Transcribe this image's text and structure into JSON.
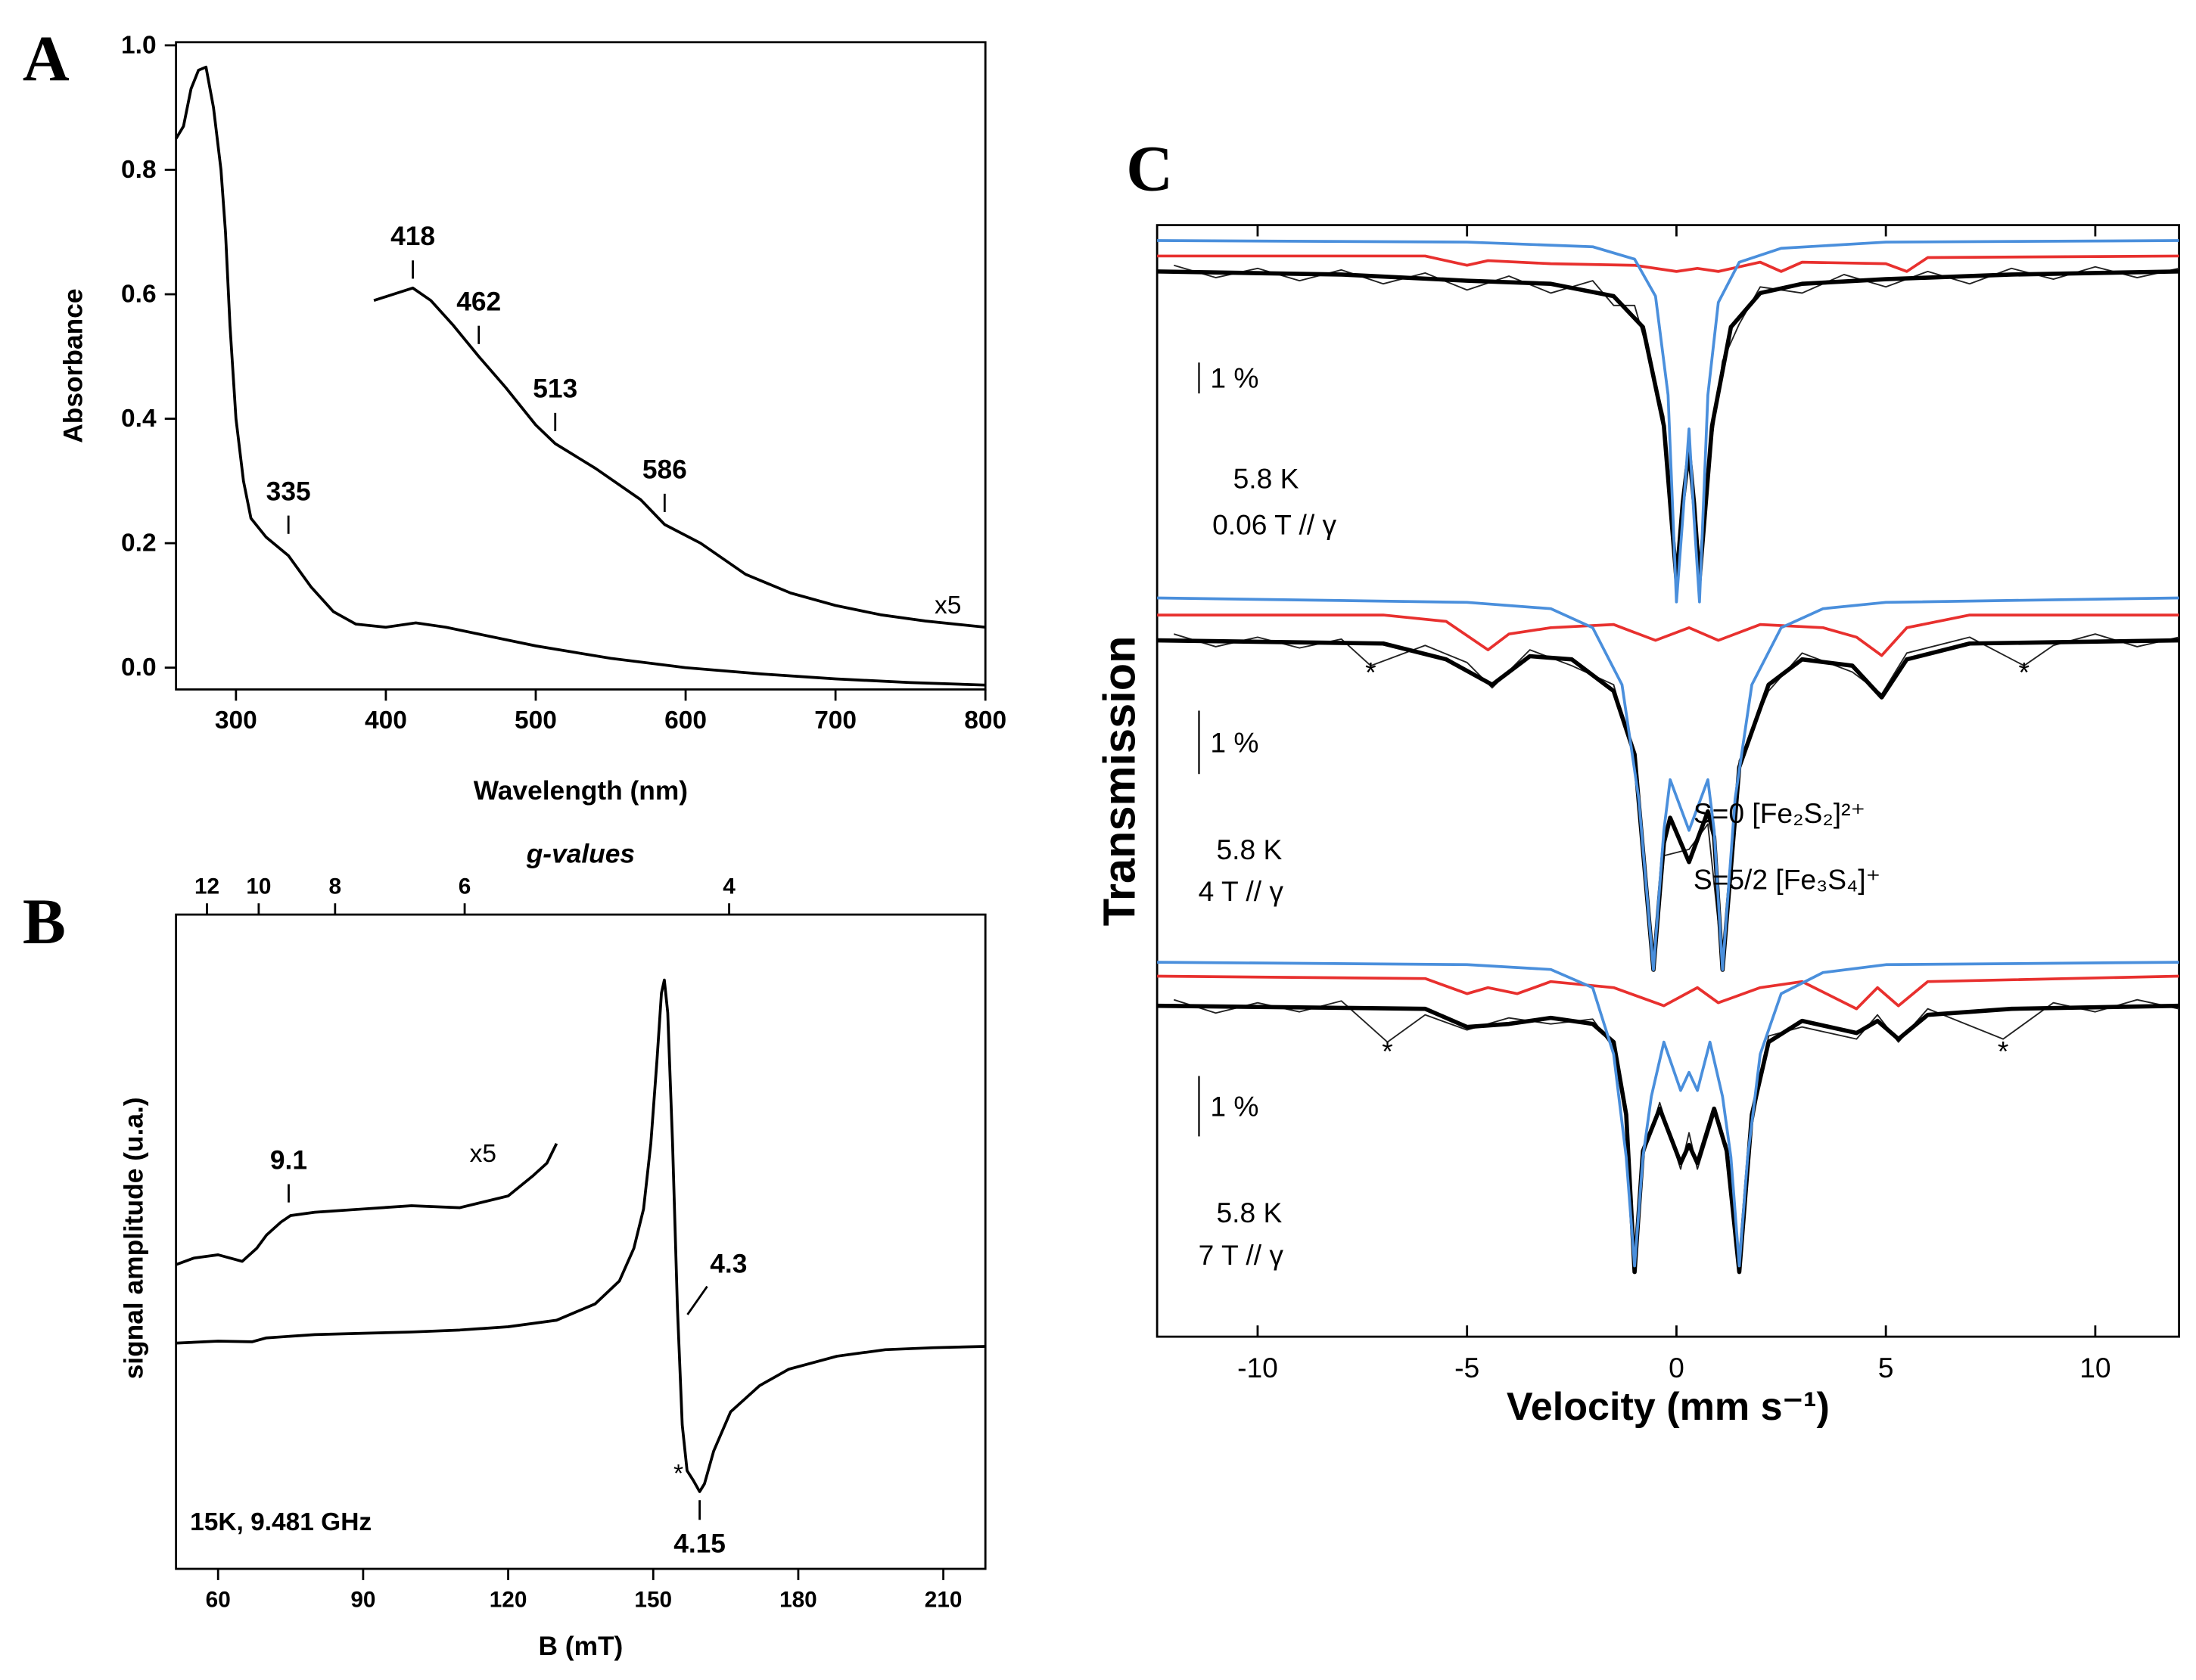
{
  "chart_data": [
    {
      "type": "line",
      "label": "A",
      "xlabel": "Wavelength (nm)",
      "ylabel": "Absorbance",
      "xlim": [
        260,
        800
      ],
      "xticks": [
        300,
        400,
        500,
        600,
        700,
        800
      ],
      "ylim": [
        -0.035,
        1.005
      ],
      "yticks": [
        {
          "value": 0,
          "label": "0.0"
        },
        0.2,
        0.4,
        0.6,
        0.8,
        {
          "value": 1,
          "label": "1.0"
        }
      ],
      "series": [
        {
          "color": "#000000",
          "x": [
            260,
            265,
            270,
            275,
            280,
            285,
            290,
            293,
            296,
            300,
            305,
            310,
            320,
            335,
            350,
            365,
            380,
            400,
            420,
            440,
            460,
            500,
            550,
            600,
            650,
            700,
            750,
            800
          ],
          "values": [
            0.85,
            0.87,
            0.93,
            0.96,
            0.965,
            0.9,
            0.8,
            0.7,
            0.55,
            0.4,
            0.3,
            0.24,
            0.21,
            0.18,
            0.13,
            0.09,
            0.07,
            0.065,
            0.072,
            0.065,
            0.055,
            0.035,
            0.015,
            0,
            -0.01,
            -0.018,
            -0.024,
            -0.028
          ]
        },
        {
          "color": "#000000",
          "x": [
            392,
            405,
            418,
            430,
            445,
            462,
            480,
            500,
            513,
            540,
            570,
            586,
            610,
            640,
            670,
            700,
            730,
            760,
            800
          ],
          "values": [
            0.59,
            0.6,
            0.61,
            0.59,
            0.55,
            0.5,
            0.45,
            0.39,
            0.36,
            0.32,
            0.27,
            0.23,
            0.2,
            0.15,
            0.12,
            0.1,
            0.085,
            0.075,
            0.065
          ]
        }
      ],
      "annotations": [
        {
          "text": "418",
          "x": 418,
          "y": 0.625,
          "side": "above"
        },
        {
          "text": "462",
          "x": 462,
          "y": 0.52,
          "side": "above"
        },
        {
          "text": "513",
          "x": 513,
          "y": 0.38,
          "side": "above"
        },
        {
          "text": "586",
          "x": 586,
          "y": 0.25,
          "side": "above"
        },
        {
          "text": "335",
          "x": 335,
          "y": 0.215,
          "side": "above"
        }
      ],
      "labels": [
        {
          "text": "x5",
          "x": 775,
          "y": 0.1
        }
      ]
    },
    {
      "type": "line",
      "label": "B",
      "xlabel": "B (mT)",
      "x2label": "g-values",
      "ylabel": "signal amplitude (u.a.)",
      "xlim": [
        51.3,
        218.7
      ],
      "xticks": [
        60,
        90,
        120,
        150,
        180,
        210
      ],
      "x2ticks": [
        {
          "value": 57.7,
          "label": "12"
        },
        {
          "value": 68.4,
          "label": "10"
        },
        {
          "value": 84.2,
          "label": "8"
        },
        {
          "value": 111.0,
          "label": "6"
        },
        {
          "value": 165.7,
          "label": "4"
        }
      ],
      "ylim": [
        0,
        100
      ],
      "series": [
        {
          "color": "#000000",
          "x": [
            51.3,
            60,
            67,
            70,
            80,
            90,
            100,
            110,
            120,
            130,
            138,
            143,
            146,
            148,
            149.5,
            150.8,
            151.7,
            152.3,
            153,
            154,
            155,
            156,
            157,
            158.3,
            159.6,
            160.6,
            162.5,
            166,
            172,
            178,
            188,
            198,
            208,
            218.7
          ],
          "values": [
            34.5,
            34.8,
            34.7,
            35.3,
            35.8,
            36,
            36.2,
            36.5,
            37,
            38,
            40.5,
            44,
            49,
            55,
            65,
            78,
            88,
            90,
            85,
            65,
            40,
            22,
            15,
            13.5,
            11.8,
            13,
            18,
            24,
            28,
            30.5,
            32.5,
            33.5,
            33.8,
            34
          ]
        },
        {
          "color": "#000000",
          "x": [
            51.3,
            55,
            60,
            65,
            68,
            70,
            73,
            75,
            80,
            90,
            100,
            110,
            120,
            125,
            128,
            130
          ],
          "values": [
            46.5,
            47.5,
            48,
            47,
            49,
            51,
            53,
            54,
            54.5,
            55,
            55.5,
            55.2,
            57,
            60,
            62,
            65
          ]
        }
      ],
      "annotations": [
        {
          "text": "9.1",
          "x": 74.6,
          "y": 56,
          "side": "above"
        },
        {
          "text": "4.3",
          "x": 156.5,
          "y": 38,
          "side": "upright"
        },
        {
          "text": "4.15",
          "x": 159.6,
          "y": 10.5,
          "side": "below"
        }
      ],
      "labels": [
        {
          "text": "x5",
          "x": 114.8,
          "y": 63.4
        },
        {
          "text": "*",
          "x": 155.2,
          "y": 14.5
        },
        {
          "text": "15K, 9.481 GHz",
          "x": 54.2,
          "y": 7.1,
          "anchor": "start"
        }
      ]
    },
    {
      "type": "line",
      "label": "C",
      "xlim": [
        -12.4,
        12.0
      ],
      "ylim": [
        89.2,
        101.5
      ],
      "series": [
        {
          "color": "#222222",
          "x": [
            -12,
            -11,
            -10,
            -9,
            -8,
            -7,
            -6,
            -5,
            -4,
            -3,
            -2,
            -1.5,
            -1,
            -0.6,
            -0.3,
            0,
            0.15,
            0.3,
            0.42,
            0.55,
            0.8,
            1.1,
            1.5,
            2,
            3,
            4,
            5,
            6,
            7,
            8,
            9,
            10,
            11,
            12
          ],
          "values": [
            100.2,
            99.8,
            100.1,
            99.7,
            100.05,
            99.6,
            99.95,
            99.4,
            99.85,
            99.3,
            99.7,
            98.9,
            98.9,
            97.0,
            95.3,
            89.8,
            92.8,
            94.6,
            92.2,
            90.2,
            94.1,
            97.1,
            98.3,
            99.5,
            99.3,
            99.9,
            99.5,
            100.0,
            99.6,
            100.1,
            99.75,
            100.15,
            99.8,
            100.1
          ]
        },
        {
          "color": "#000000",
          "x": [
            -12.4,
            -8,
            -5,
            -3,
            -1.5,
            -0.8,
            -0.3,
            0,
            0.15,
            0.3,
            0.42,
            0.55,
            0.85,
            1.3,
            2,
            3,
            5,
            8,
            12
          ],
          "values": [
            100,
            99.9,
            99.7,
            99.6,
            99.2,
            98.2,
            95,
            90,
            92.5,
            94.2,
            92.5,
            90,
            95,
            98.2,
            99.3,
            99.6,
            99.75,
            99.9,
            100
          ]
        },
        {
          "color": "#e8302e",
          "x": [
            -12.4,
            -6,
            -5,
            -4.5,
            -3,
            -1,
            0,
            0.5,
            1,
            2,
            2.5,
            3,
            5,
            5.5,
            6,
            12
          ],
          "values": [
            100.5,
            100.5,
            100.2,
            100.35,
            100.25,
            100.2,
            100,
            100.1,
            100,
            100.3,
            100,
            100.3,
            100.25,
            100,
            100.45,
            100.5
          ]
        },
        {
          "color": "#4a8fdc",
          "x": [
            -12.4,
            -5,
            -2,
            -1,
            -0.5,
            -0.2,
            0,
            0.15,
            0.3,
            0.42,
            0.55,
            0.75,
            1,
            1.5,
            2.5,
            5,
            12
          ],
          "values": [
            101,
            100.95,
            100.8,
            100.4,
            99.2,
            96,
            89.3,
            92,
            94.9,
            92,
            89.3,
            96,
            99,
            100.3,
            100.75,
            100.95,
            101
          ]
        }
      ],
      "scale_bar": {
        "label": "1 %",
        "x": -11.4,
        "from": 97.05,
        "to": 96.05
      },
      "labels": [
        {
          "text": "5.8 K",
          "x": -9.8,
          "y": 93.3
        },
        {
          "text": "0.06 T // γ",
          "x": -9.6,
          "y": 91.8
        }
      ]
    },
    {
      "type": "line",
      "ylabel": "Transmission",
      "xlim": [
        -12.4,
        12.0
      ],
      "ylim": [
        94.56,
        100.78
      ],
      "legend": "right",
      "series": [
        {
          "color": "#222222",
          "x": [
            -12,
            -11,
            -10,
            -9,
            -8,
            -7.3,
            -6,
            -5,
            -4.4,
            -3.5,
            -2.5,
            -1.5,
            -1,
            -0.55,
            -0.3,
            0.3,
            0.75,
            1.1,
            1.5,
            2.2,
            3,
            4.2,
            4.9,
            5.5,
            7,
            8.3,
            9,
            10,
            11,
            12
          ],
          "values": [
            100.1,
            99.9,
            100.05,
            99.88,
            100.02,
            99.6,
            99.92,
            99.65,
            99.25,
            99.85,
            99.6,
            99.3,
            98.1,
            94.9,
            96.6,
            96.7,
            97.1,
            94.9,
            98.1,
            99.2,
            99.8,
            99.5,
            99.15,
            99.8,
            100.05,
            99.6,
            99.92,
            100.1,
            99.9,
            100.05
          ]
        },
        {
          "color": "#000000",
          "x": [
            -12.4,
            -7,
            -5.5,
            -4.4,
            -3.5,
            -2.5,
            -1.5,
            -1,
            -0.55,
            -0.3,
            -0.15,
            0.3,
            0.75,
            0.9,
            1.1,
            1.5,
            2.2,
            3,
            4.2,
            4.9,
            5.5,
            7,
            12
          ],
          "values": [
            100,
            99.95,
            99.7,
            99.3,
            99.75,
            99.7,
            99.2,
            98.2,
            94.8,
            96.8,
            97.2,
            96.5,
            97.3,
            96.9,
            94.8,
            98,
            99.3,
            99.7,
            99.6,
            99.1,
            99.7,
            99.95,
            100
          ]
        },
        {
          "name": "S=5/2  [Fe₃S₄]⁺",
          "color": "#e8302e",
          "x": [
            -12.4,
            -7,
            -5.5,
            -4.5,
            -4,
            -3,
            -1.5,
            -0.5,
            0.3,
            1,
            2,
            3.5,
            4.3,
            4.9,
            5.5,
            7,
            12
          ],
          "values": [
            100.4,
            100.4,
            100.3,
            99.85,
            100.1,
            100.2,
            100.25,
            100,
            100.2,
            100,
            100.25,
            100.2,
            100.05,
            99.76,
            100.2,
            100.4,
            100.4
          ]
        },
        {
          "name": "S=0  [Fe₂S₂]²⁺",
          "color": "#4a8fdc",
          "x": [
            -12.4,
            -5,
            -3,
            -2,
            -1.3,
            -0.9,
            -0.55,
            -0.3,
            -0.15,
            0.3,
            0.75,
            0.9,
            1.1,
            1.4,
            1.8,
            2.5,
            3.5,
            5,
            12
          ],
          "values": [
            100.67,
            100.6,
            100.5,
            100.2,
            99.3,
            97.5,
            94.8,
            97,
            97.8,
            97,
            97.8,
            97,
            94.8,
            97.5,
            99.3,
            100.2,
            100.5,
            100.6,
            100.67
          ]
        }
      ],
      "scale_bar": {
        "label": "1 %",
        "x": -11.4,
        "from": 98.89,
        "to": 97.89
      },
      "labels": [
        {
          "text": "5.8 K",
          "x": -10.2,
          "y": 96.7
        },
        {
          "text": "4 T // γ",
          "x": -10.4,
          "y": 96.04
        },
        {
          "text": "*",
          "x": -7.3,
          "y": 99.5
        },
        {
          "text": "*",
          "x": 8.3,
          "y": 99.5
        }
      ]
    },
    {
      "type": "line",
      "xlabel": "Velocity (mm s⁻¹)",
      "xlim": [
        -12.4,
        12.0
      ],
      "xticks": [
        -10,
        -5,
        0,
        5,
        10
      ],
      "ylim": [
        94.53,
        100.81
      ],
      "series": [
        {
          "color": "#222222",
          "x": [
            -12,
            -11,
            -10,
            -9,
            -8,
            -6.9,
            -6,
            -5,
            -4,
            -3,
            -2,
            -1.5,
            -1.2,
            -1,
            -0.8,
            -0.4,
            0.1,
            0.3,
            0.5,
            0.9,
            1.2,
            1.5,
            1.8,
            2.2,
            3,
            4.3,
            4.8,
            5.3,
            6,
            7.8,
            9,
            10,
            11,
            12
          ],
          "values": [
            100.1,
            99.88,
            100.05,
            99.9,
            100.08,
            99.4,
            99.85,
            99.6,
            99.8,
            99.7,
            99.78,
            99.3,
            98.3,
            95.7,
            97.5,
            98.4,
            97.3,
            97.9,
            97.3,
            98.2,
            97.7,
            95.7,
            98.0,
            99.5,
            99.65,
            99.45,
            99.85,
            99.4,
            99.95,
            99.45,
            100.05,
            99.9,
            100.1,
            99.95
          ]
        },
        {
          "color": "#000000",
          "x": [
            -12.4,
            -6,
            -5,
            -4,
            -3,
            -2,
            -1.5,
            -1.2,
            -1,
            -0.8,
            -0.4,
            0.1,
            0.3,
            0.5,
            0.9,
            1.2,
            1.5,
            1.8,
            2.2,
            3,
            4.3,
            4.8,
            5.3,
            6,
            8,
            12
          ],
          "values": [
            100,
            99.95,
            99.65,
            99.7,
            99.8,
            99.7,
            99.4,
            98.2,
            95.6,
            97.6,
            98.3,
            97.4,
            97.7,
            97.4,
            98.3,
            97.6,
            95.6,
            98.2,
            99.4,
            99.75,
            99.55,
            99.75,
            99.45,
            99.85,
            99.95,
            100
          ]
        },
        {
          "color": "#e8302e",
          "x": [
            -12.4,
            -6,
            -5,
            -4.5,
            -3.8,
            -3,
            -1.5,
            -0.3,
            0.5,
            1,
            2,
            3,
            4.3,
            4.8,
            5.3,
            6,
            12
          ],
          "values": [
            100.49,
            100.45,
            100.2,
            100.3,
            100.2,
            100.4,
            100.3,
            100,
            100.3,
            100.05,
            100.3,
            100.4,
            99.95,
            100.3,
            100,
            100.4,
            100.49
          ]
        },
        {
          "color": "#4a8fdc",
          "x": [
            -12.4,
            -5,
            -3,
            -2,
            -1.5,
            -1.2,
            -1,
            -0.8,
            -0.6,
            -0.3,
            0.1,
            0.3,
            0.5,
            0.8,
            1.1,
            1.3,
            1.5,
            1.7,
            2,
            2.5,
            3.5,
            5,
            12
          ],
          "values": [
            100.72,
            100.68,
            100.6,
            100.3,
            99.2,
            97.5,
            95.7,
            97.5,
            98.5,
            99.4,
            98.6,
            98.9,
            98.6,
            99.4,
            98.5,
            97.5,
            95.7,
            97.5,
            99.2,
            100.2,
            100.55,
            100.68,
            100.72
          ]
        }
      ],
      "scale_bar": {
        "label": "1 %",
        "x": -11.4,
        "from": 98.84,
        "to": 97.84
      },
      "labels": [
        {
          "text": "5.8 K",
          "x": -10.2,
          "y": 96.58
        },
        {
          "text": "7 T // γ",
          "x": -10.4,
          "y": 95.88
        },
        {
          "text": "*",
          "x": -6.9,
          "y": 99.25
        },
        {
          "text": "*",
          "x": 7.8,
          "y": 99.25
        }
      ]
    }
  ]
}
